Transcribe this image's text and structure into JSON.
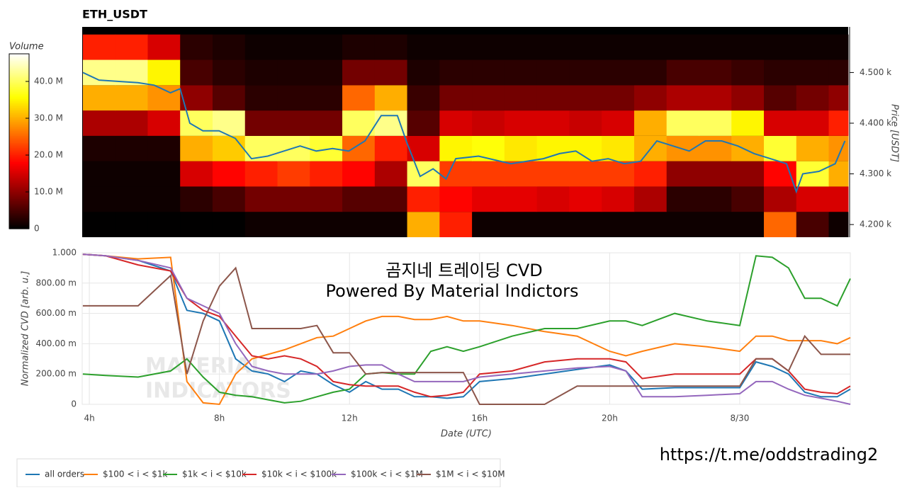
{
  "chart_data": [
    {
      "type": "heatmap",
      "title": "ETH_USDT",
      "y_label": "Price [USDT]",
      "colorbar_title": "Volume",
      "colormap": "hot",
      "clim": [
        0,
        47500000.0
      ],
      "colorbar_ticks": [
        0,
        {
          "value": 10000000.0,
          "label": "10.0 M"
        },
        {
          "value": 20000000.0,
          "label": "20.0 M"
        },
        {
          "value": 30000000.0,
          "label": "30.0 M"
        },
        {
          "value": 40000000.0,
          "label": "40.0 M"
        }
      ],
      "xlim": [
        3.78,
        27.4
      ],
      "ylim": [
        4175,
        4590
      ],
      "yticks": [
        {
          "value": 4200,
          "label": "4.200 k"
        },
        {
          "value": 4300,
          "label": "4.300 k"
        },
        {
          "value": 4400,
          "label": "4.400 k"
        },
        {
          "value": 4500,
          "label": "4.500 k"
        }
      ],
      "x_edges": [
        3.8,
        4.8,
        5.8,
        6.8,
        7.8,
        8.8,
        9.8,
        10.8,
        11.8,
        12.8,
        13.8,
        14.8,
        15.8,
        16.8,
        17.8,
        18.8,
        19.8,
        20.8,
        21.8,
        22.8,
        23.8,
        24.8,
        25.8,
        26.8,
        27.4
      ],
      "y_edges": [
        4175,
        4225,
        4275,
        4325,
        4375,
        4425,
        4475,
        4525,
        4575
      ],
      "z": [
        [
          100000.0,
          100000.0,
          100000.0,
          100000.0,
          100000.0,
          1000000.0,
          1000000.0,
          1000000.0,
          1000000.0,
          1000000.0,
          30000000.0,
          20000000.0,
          1000000.0,
          1000000.0,
          1000000.0,
          1000000.0,
          1000000.0,
          1000000.0,
          1000000.0,
          1000000.0,
          1000000.0,
          25000000.0,
          5000000.0,
          1000000.0
        ],
        [
          1000000.0,
          1000000.0,
          1000000.0,
          3000000.0,
          5000000.0,
          8000000.0,
          8000000.0,
          8000000.0,
          6000000.0,
          6000000.0,
          20000000.0,
          18000000.0,
          16000000.0,
          16000000.0,
          15000000.0,
          16000000.0,
          15000000.0,
          12000000.0,
          3000000.0,
          3000000.0,
          5000000.0,
          12000000.0,
          15000000.0,
          15000000.0
        ],
        [
          1000000.0,
          1000000.0,
          1000000.0,
          15000000.0,
          18000000.0,
          20000000.0,
          22000000.0,
          20000000.0,
          18000000.0,
          12000000.0,
          40000000.0,
          22000000.0,
          22000000.0,
          22000000.0,
          22000000.0,
          22000000.0,
          22000000.0,
          20000000.0,
          10000000.0,
          10000000.0,
          10000000.0,
          18000000.0,
          38000000.0,
          30000000.0
        ],
        [
          2000000.0,
          2000000.0,
          2000000.0,
          30000000.0,
          32000000.0,
          40000000.0,
          40000000.0,
          38000000.0,
          25000000.0,
          20000000.0,
          15000000.0,
          35000000.0,
          36000000.0,
          34000000.0,
          35000000.0,
          35000000.0,
          34000000.0,
          30000000.0,
          28000000.0,
          28000000.0,
          30000000.0,
          38000000.0,
          30000000.0,
          28000000.0
        ],
        [
          12000000.0,
          12000000.0,
          15000000.0,
          40000000.0,
          42000000.0,
          8000000.0,
          8000000.0,
          8000000.0,
          40000000.0,
          42000000.0,
          6000000.0,
          15000000.0,
          14000000.0,
          15000000.0,
          15000000.0,
          14000000.0,
          15000000.0,
          30000000.0,
          40000000.0,
          40000000.0,
          35000000.0,
          15000000.0,
          15000000.0,
          20000000.0
        ],
        [
          30000000.0,
          30000000.0,
          28000000.0,
          10000000.0,
          6000000.0,
          3000000.0,
          3000000.0,
          3000000.0,
          25000000.0,
          30000000.0,
          4000000.0,
          8000000.0,
          8000000.0,
          8000000.0,
          8000000.0,
          8000000.0,
          8000000.0,
          10000000.0,
          12000000.0,
          12000000.0,
          10000000.0,
          6000000.0,
          8000000.0,
          10000000.0
        ],
        [
          42000000.0,
          42000000.0,
          35000000.0,
          5000000.0,
          3000000.0,
          2000000.0,
          2000000.0,
          2000000.0,
          8000000.0,
          8000000.0,
          2000000.0,
          3000000.0,
          3000000.0,
          3000000.0,
          3000000.0,
          3000000.0,
          3000000.0,
          3000000.0,
          5000000.0,
          5000000.0,
          4000000.0,
          3000000.0,
          3000000.0,
          3000000.0
        ],
        [
          20000000.0,
          20000000.0,
          15000000.0,
          3000000.0,
          2000000.0,
          1000000.0,
          1000000.0,
          1000000.0,
          2000000.0,
          2000000.0,
          1000000.0,
          1000000.0,
          1000000.0,
          1000000.0,
          1000000.0,
          1000000.0,
          1000000.0,
          1000000.0,
          1000000.0,
          1000000.0,
          1000000.0,
          1000000.0,
          1000000.0,
          1000000.0
        ]
      ],
      "line": {
        "color": "#1f77b4",
        "x": [
          3.8,
          4.3,
          5,
          5.5,
          6,
          6.5,
          6.8,
          7.1,
          7.5,
          8,
          8.5,
          9,
          9.5,
          10,
          10.5,
          11,
          11.5,
          12,
          12.5,
          13,
          13.5,
          13.8,
          14.2,
          14.6,
          15,
          15.3,
          16,
          17,
          18,
          18.5,
          19,
          19.5,
          20,
          20.5,
          21,
          21.5,
          22,
          22.5,
          23,
          23.5,
          24,
          24.5,
          25,
          25.5,
          25.8,
          26,
          26.5,
          27,
          27.3
        ],
        "values": [
          4500,
          4485,
          4482,
          4480,
          4475,
          4460,
          4468,
          4400,
          4385,
          4385,
          4370,
          4330,
          4335,
          4345,
          4355,
          4345,
          4350,
          4345,
          4365,
          4415,
          4415,
          4360,
          4295,
          4310,
          4290,
          4330,
          4335,
          4320,
          4330,
          4340,
          4345,
          4325,
          4330,
          4320,
          4325,
          4365,
          4355,
          4345,
          4365,
          4365,
          4355,
          4340,
          4330,
          4320,
          4265,
          4300,
          4305,
          4320,
          4365
        ]
      }
    },
    {
      "type": "line",
      "x_label": "Date (UTC)",
      "y_label": "Normalized CVD [arb. u.]",
      "annotations": [
        "곰지네 트레이딩 CVD",
        "Powered By Material Indictors"
      ],
      "watermark": [
        "MATERIAL",
        "INDICATORS"
      ],
      "credit": "https://t.me/oddstrading2",
      "xlim": [
        3.78,
        27.4
      ],
      "ylim": [
        0,
        1
      ],
      "xticks": [
        {
          "value": 4,
          "label": "4h"
        },
        {
          "value": 8,
          "label": "8h"
        },
        {
          "value": 12,
          "label": "12h"
        },
        {
          "value": 16,
          "label": "16h"
        },
        {
          "value": 20,
          "label": "20h"
        },
        {
          "value": 24,
          "label": "8/30"
        }
      ],
      "yticks": [
        0,
        {
          "value": 0.2,
          "label": "200.00 m"
        },
        {
          "value": 0.4,
          "label": "400.00 m"
        },
        {
          "value": 0.6,
          "label": "600.00 m"
        },
        {
          "value": 0.8,
          "label": "800.00 m"
        },
        {
          "value": 1,
          "label": "1.000"
        }
      ],
      "grid": true,
      "legend": "bottom",
      "x": [
        3.8,
        4.5,
        5.5,
        6.5,
        7,
        7.5,
        8,
        8.5,
        9,
        9.5,
        10,
        10.5,
        11,
        11.5,
        12,
        12.5,
        13,
        13.5,
        14,
        14.5,
        15,
        15.5,
        16,
        17,
        18,
        19,
        20,
        20.5,
        21,
        22,
        23,
        24,
        24.5,
        25,
        25.5,
        26,
        26.5,
        27,
        27.4
      ],
      "series": [
        {
          "name": "all orders",
          "color": "#1f77b4",
          "values": [
            0.99,
            0.98,
            0.95,
            0.88,
            0.62,
            0.6,
            0.55,
            0.3,
            0.22,
            0.2,
            0.15,
            0.22,
            0.2,
            0.13,
            0.08,
            0.15,
            0.1,
            0.1,
            0.05,
            0.05,
            0.04,
            0.05,
            0.15,
            0.17,
            0.2,
            0.23,
            0.26,
            0.22,
            0.1,
            0.11,
            0.11,
            0.11,
            0.28,
            0.25,
            0.2,
            0.08,
            0.05,
            0.05,
            0.1
          ]
        },
        {
          "name": "$100 < i < $1k",
          "color": "#ff7f0e",
          "values": [
            0.99,
            0.98,
            0.96,
            0.97,
            0.15,
            0.01,
            0,
            0.2,
            0.3,
            0.33,
            0.36,
            0.4,
            0.44,
            0.45,
            0.5,
            0.55,
            0.58,
            0.58,
            0.56,
            0.56,
            0.58,
            0.55,
            0.55,
            0.52,
            0.48,
            0.45,
            0.35,
            0.32,
            0.35,
            0.4,
            0.38,
            0.35,
            0.45,
            0.45,
            0.42,
            0.42,
            0.42,
            0.4,
            0.44
          ]
        },
        {
          "name": "$1k < i < $10k",
          "color": "#2ca02c",
          "values": [
            0.2,
            0.19,
            0.18,
            0.22,
            0.3,
            0.18,
            0.08,
            0.06,
            0.05,
            0.03,
            0.01,
            0.02,
            0.05,
            0.08,
            0.1,
            0.2,
            0.21,
            0.2,
            0.2,
            0.35,
            0.38,
            0.35,
            0.38,
            0.45,
            0.5,
            0.5,
            0.55,
            0.55,
            0.52,
            0.6,
            0.55,
            0.52,
            0.98,
            0.97,
            0.9,
            0.7,
            0.7,
            0.65,
            0.83
          ]
        },
        {
          "name": "$10k < i < $100k",
          "color": "#d62728",
          "values": [
            0.99,
            0.98,
            0.92,
            0.88,
            0.7,
            0.62,
            0.58,
            0.45,
            0.32,
            0.3,
            0.32,
            0.3,
            0.25,
            0.15,
            0.13,
            0.12,
            0.12,
            0.12,
            0.08,
            0.05,
            0.06,
            0.08,
            0.2,
            0.22,
            0.28,
            0.3,
            0.3,
            0.28,
            0.17,
            0.2,
            0.2,
            0.2,
            0.3,
            0.3,
            0.22,
            0.1,
            0.08,
            0.07,
            0.12
          ]
        },
        {
          "name": "$100k < i < $1M",
          "color": "#9467bd",
          "values": [
            0.99,
            0.98,
            0.95,
            0.9,
            0.7,
            0.65,
            0.6,
            0.4,
            0.25,
            0.22,
            0.2,
            0.2,
            0.2,
            0.22,
            0.25,
            0.26,
            0.26,
            0.2,
            0.15,
            0.15,
            0.15,
            0.15,
            0.18,
            0.2,
            0.22,
            0.24,
            0.25,
            0.22,
            0.05,
            0.05,
            0.06,
            0.07,
            0.15,
            0.15,
            0.1,
            0.06,
            0.04,
            0.02,
            0
          ]
        },
        {
          "name": "$1M < i < $10M",
          "color": "#8c564b",
          "values": [
            0.65,
            0.65,
            0.65,
            0.85,
            0.2,
            0.55,
            0.78,
            0.9,
            0.5,
            0.5,
            0.5,
            0.5,
            0.52,
            0.34,
            0.34,
            0.2,
            0.21,
            0.21,
            0.21,
            0.21,
            0.21,
            0.21,
            0,
            0,
            0,
            0.12,
            0.12,
            0.12,
            0.12,
            0.12,
            0.12,
            0.12,
            0.3,
            0.3,
            0.22,
            0.45,
            0.33,
            0.33,
            0.33
          ]
        }
      ]
    }
  ]
}
